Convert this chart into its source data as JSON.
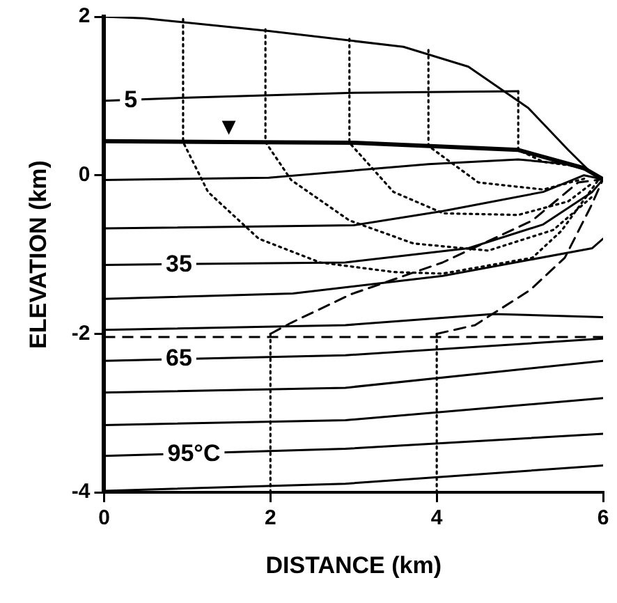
{
  "chart_data": {
    "type": "line",
    "xlabel": "DISTANCE (km)",
    "ylabel": "ELEVATION (km)",
    "xlim": [
      0,
      6
    ],
    "ylim": [
      -4,
      2
    ],
    "xticks": [
      0,
      2,
      4,
      6
    ],
    "yticks": [
      -4,
      -2,
      0,
      2
    ],
    "grid": false,
    "legend": false,
    "marker": "none",
    "series": [
      {
        "color": "#000000",
        "line_style": "solid",
        "x": [
          0,
          0.48,
          1.98,
          3.6,
          4.38,
          5.1,
          5.58,
          5.87,
          6
        ],
        "values": [
          2.0,
          1.98,
          1.82,
          1.62,
          1.37,
          0.85,
          0.32,
          0.02,
          -0.05
        ]
      },
      {
        "color": "#000000",
        "line_style": "solid",
        "x": [
          0,
          1.5,
          3.0,
          4.98,
          5.77,
          6
        ],
        "values": [
          0.43,
          0.42,
          0.41,
          0.32,
          0.09,
          -0.05
        ]
      },
      {
        "color": "#000000",
        "line_style": "solid",
        "x": [
          0,
          1.0,
          3.0,
          4.98
        ],
        "values": [
          0.94,
          0.98,
          1.04,
          1.06
        ]
      },
      {
        "color": "#000000",
        "line_style": "solid",
        "x": [
          0,
          1.98,
          3.9,
          4.98,
          5.58,
          5.87,
          6
        ],
        "values": [
          -0.06,
          -0.03,
          0.14,
          0.2,
          0.14,
          0.04,
          -0.05
        ]
      },
      {
        "color": "#000000",
        "line_style": "solid",
        "x": [
          0,
          3.0,
          4.08,
          5.28,
          5.77,
          6
        ],
        "values": [
          -0.67,
          -0.63,
          -0.45,
          -0.21,
          0.0,
          -0.05
        ]
      },
      {
        "color": "#000000",
        "line_style": "solid",
        "x": [
          0,
          2.9,
          4.38,
          5.28,
          5.87,
          6
        ],
        "values": [
          -1.13,
          -1.1,
          -0.92,
          -0.62,
          -0.21,
          -0.05
        ]
      },
      {
        "color": "#000000",
        "line_style": "solid",
        "x": [
          0,
          2.27,
          4.07,
          5.87,
          6
        ],
        "values": [
          -1.56,
          -1.49,
          -1.27,
          -0.92,
          -0.8
        ]
      },
      {
        "color": "#000000",
        "line_style": "solid",
        "x": [
          0,
          2.9,
          4.68,
          6
        ],
        "values": [
          -1.95,
          -1.89,
          -1.75,
          -1.79
        ]
      },
      {
        "color": "#000000",
        "line_style": "solid",
        "x": [
          0,
          2.9,
          6
        ],
        "values": [
          -2.34,
          -2.27,
          -2.06
        ]
      },
      {
        "color": "#000000",
        "line_style": "solid",
        "x": [
          0,
          2.9,
          6
        ],
        "values": [
          -2.74,
          -2.68,
          -2.34
        ]
      },
      {
        "color": "#000000",
        "line_style": "solid",
        "x": [
          0,
          2.9,
          6
        ],
        "values": [
          -3.15,
          -3.09,
          -2.81
        ]
      },
      {
        "color": "#000000",
        "line_style": "solid",
        "x": [
          0,
          2.9,
          6
        ],
        "values": [
          -3.54,
          -3.45,
          -3.26
        ]
      },
      {
        "color": "#000000",
        "line_style": "solid",
        "x": [
          0,
          2.9,
          6
        ],
        "values": [
          -3.98,
          -3.89,
          -3.66
        ]
      },
      {
        "color": "#000000",
        "line_style": "dotted",
        "x": [
          0.95,
          0.95,
          1.25,
          1.86,
          2.6,
          3.48,
          4.07,
          5.15,
          5.5,
          5.95
        ],
        "values": [
          1.97,
          0.42,
          -0.21,
          -0.8,
          -1.1,
          -1.22,
          -1.24,
          -1.04,
          -0.7,
          -0.05
        ]
      },
      {
        "color": "#000000",
        "line_style": "dotted",
        "x": [
          1.94,
          1.94,
          2.25,
          2.95,
          3.72,
          4.62,
          5.4,
          5.87
        ],
        "values": [
          1.84,
          0.42,
          -0.06,
          -0.57,
          -0.86,
          -0.95,
          -0.69,
          -0.27
        ]
      },
      {
        "color": "#000000",
        "line_style": "dotted",
        "x": [
          2.95,
          2.95,
          3.48,
          4.08,
          4.98,
          5.58,
          5.87
        ],
        "values": [
          1.72,
          0.41,
          -0.21,
          -0.48,
          -0.5,
          -0.33,
          -0.1
        ]
      },
      {
        "color": "#000000",
        "line_style": "dotted",
        "x": [
          3.9,
          3.9,
          4.5,
          5.28,
          5.82
        ],
        "values": [
          1.58,
          0.37,
          -0.09,
          -0.18,
          -0.03
        ]
      },
      {
        "color": "#000000",
        "line_style": "dotted",
        "x": [
          4.98,
          4.98,
          5.28,
          5.77
        ],
        "values": [
          1.06,
          0.32,
          0.17,
          0.1
        ]
      },
      {
        "color": "#000000",
        "line_style": "dashed",
        "x": [
          2.0,
          2.25,
          2.97,
          4.07,
          5.15,
          5.7,
          6
        ],
        "values": [
          -2.0,
          -1.86,
          -1.5,
          -1.1,
          -0.57,
          -0.09,
          -0.05
        ]
      },
      {
        "color": "#000000",
        "line_style": "dashed",
        "x": [
          4.0,
          4.46,
          5.12,
          5.54,
          5.85,
          6
        ],
        "values": [
          -2.0,
          -1.89,
          -1.45,
          -1.04,
          -0.4,
          -0.05
        ]
      },
      {
        "color": "#000000",
        "line_style": "dotted",
        "x": [
          2.0,
          2.0
        ],
        "values": [
          -4.0,
          -2.0
        ]
      },
      {
        "color": "#000000",
        "line_style": "dotted",
        "x": [
          4.0,
          4.0
        ],
        "values": [
          -4.0,
          -2.0
        ]
      }
    ],
    "ref_lines": [
      {
        "axis": "y",
        "value": -2.04,
        "line_style": "dashed",
        "color": "#000000"
      }
    ],
    "annotations": [
      {
        "text": "5",
        "x": 0.32,
        "y": 0.94
      },
      {
        "text": "35",
        "x": 0.9,
        "y": -1.13
      },
      {
        "text": "65",
        "x": 0.9,
        "y": -2.32
      },
      {
        "text": "95°C",
        "x": 1.08,
        "y": -3.52
      },
      {
        "text": "▼",
        "x": 1.5,
        "y": 0.6
      }
    ]
  }
}
